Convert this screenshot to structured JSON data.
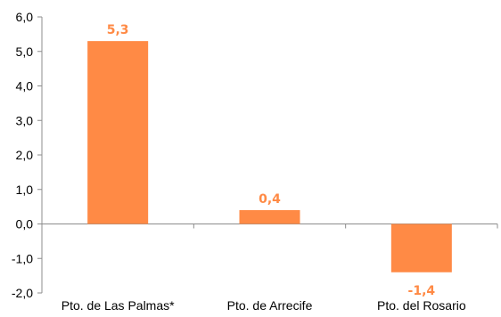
{
  "colors": {
    "bar": "#FF8A45",
    "data_label": "#FF8A45",
    "axis": "#8C8C8C",
    "text": "#000000"
  },
  "chart_data": {
    "type": "bar",
    "categories": [
      "Pto. de Las Palmas*",
      "Pto. de Arrecife",
      "Pto. del Rosario"
    ],
    "values": [
      5.3,
      0.4,
      -1.4
    ],
    "data_labels": [
      "5,3",
      "0,4",
      "-1,4"
    ],
    "title": "",
    "xlabel": "",
    "ylabel": "",
    "ylim": [
      -2.0,
      6.0
    ],
    "yticks": [
      6.0,
      5.0,
      4.0,
      3.0,
      2.0,
      1.0,
      0.0,
      -1.0,
      -2.0
    ],
    "ytick_labels": [
      "6,0",
      "5,0",
      "4,0",
      "3,0",
      "2,0",
      "1,0",
      "0,0",
      "-1,0",
      "-2,0"
    ],
    "grid": false,
    "legend": "none"
  }
}
